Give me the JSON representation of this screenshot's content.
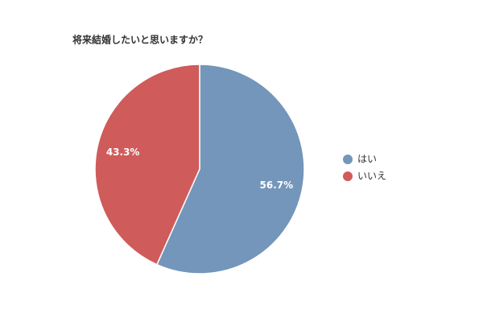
{
  "chart_data": {
    "type": "pie",
    "title": "将来結婚したいと思いますか？",
    "categories": [
      "はい",
      "いいえ"
    ],
    "values": [
      56.7,
      43.3
    ],
    "value_labels": [
      "56.7%",
      "43.3%"
    ],
    "colors": [
      "#7396ba",
      "#d05b5b"
    ],
    "legend": "right"
  }
}
